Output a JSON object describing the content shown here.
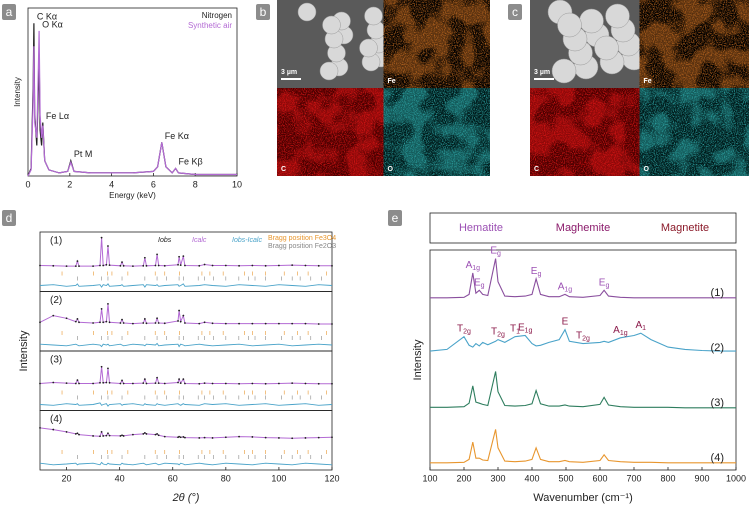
{
  "chart_data": [
    {
      "type": "line",
      "label": "a",
      "xlabel": "Energy (keV)",
      "ylabel": "Intensity",
      "xlim": [
        0,
        10
      ],
      "xticks": [
        0,
        2,
        4,
        6,
        8,
        10
      ],
      "ylim": [
        0,
        110
      ],
      "x": [
        0,
        0.15,
        0.25,
        0.28,
        0.32,
        0.42,
        0.5,
        0.53,
        0.58,
        0.65,
        0.71,
        0.8,
        1.0,
        1.5,
        1.9,
        2.05,
        2.2,
        3,
        4,
        5,
        6,
        6.2,
        6.4,
        6.6,
        6.9,
        7.06,
        7.2,
        8,
        9,
        10
      ],
      "series": [
        {
          "name": "Nitrogen",
          "color": "#222222",
          "values": [
            0,
            5,
            60,
            100,
            40,
            20,
            60,
            80,
            30,
            20,
            35,
            10,
            4,
            2,
            3,
            10,
            3,
            2,
            2,
            2,
            3,
            6,
            22,
            6,
            2,
            5,
            2,
            1,
            1,
            1
          ]
        },
        {
          "name": "Synthetic air",
          "color": "#b36ad4",
          "values": [
            0,
            4,
            50,
            85,
            35,
            25,
            75,
            95,
            40,
            25,
            33,
            10,
            4,
            2,
            3,
            9,
            3,
            2,
            2,
            2,
            3,
            6,
            22,
            6,
            2,
            5,
            2,
            1,
            1,
            1
          ]
        }
      ],
      "annotations": [
        {
          "text": "C Kα",
          "x": 0.28
        },
        {
          "text": "O Kα",
          "x": 0.53
        },
        {
          "text": "Fe Lα",
          "x": 0.71
        },
        {
          "text": "Pt M",
          "x": 2.05
        },
        {
          "text": "Fe Kα",
          "x": 6.4
        },
        {
          "text": "Fe Kβ",
          "x": 7.06
        }
      ]
    },
    {
      "type": "xrd",
      "label": "d",
      "xlabel": "2θ (°)",
      "ylabel": "Intensity",
      "xlim": [
        10,
        120
      ],
      "xticks": [
        20,
        40,
        60,
        80,
        100,
        120
      ],
      "ylim": [
        0,
        100
      ],
      "diff_ylim": [
        -5,
        5
      ],
      "legend": [
        {
          "name": "Iobs",
          "color": "#222222"
        },
        {
          "name": "Icalc",
          "color": "#b36ad4"
        },
        {
          "name": "Iobs-Icalc",
          "color": "#4aa3c9"
        },
        {
          "name": "Bragg position Fe3O4",
          "color": "#e8962e"
        },
        {
          "name": "Bragg position Fe2O3",
          "color": "#888888"
        }
      ],
      "bragg_fe3o4": [
        18.3,
        30.1,
        35.4,
        37.1,
        43.1,
        53.4,
        57.0,
        62.6,
        71,
        74,
        79,
        87,
        90,
        95,
        102,
        107,
        111,
        118
      ],
      "bragg_fe2o3": [
        24.1,
        33.2,
        35.6,
        40.9,
        49.5,
        54.1,
        57.6,
        62.4,
        64.0,
        69.6,
        72,
        75.4,
        80,
        84.9,
        88.5,
        91,
        95,
        101,
        105,
        108,
        112,
        116
      ],
      "x": [
        10,
        15,
        20,
        23.5,
        24.1,
        24.7,
        30,
        32.6,
        33.2,
        33.8,
        35,
        35.6,
        36.2,
        40.3,
        40.9,
        41.5,
        45,
        48.9,
        49.5,
        50.1,
        53.5,
        54.1,
        54.7,
        57,
        62,
        62.4,
        63,
        64,
        64.6,
        70,
        72,
        75,
        80,
        85,
        90,
        95,
        100,
        105,
        110,
        115,
        120
      ],
      "panels": [
        {
          "name": "(1)",
          "values": [
            12,
            11,
            10,
            10,
            25,
            10,
            10,
            12,
            95,
            12,
            14,
            70,
            13,
            11,
            22,
            11,
            10,
            11,
            35,
            11,
            12,
            45,
            12,
            11,
            14,
            38,
            13,
            40,
            12,
            11,
            15,
            12,
            12,
            11,
            12,
            11,
            12,
            13,
            12,
            11,
            11
          ],
          "diff": [
            0,
            1,
            -1,
            0,
            2,
            -1,
            0,
            1,
            -2,
            1,
            0,
            2,
            -1,
            0,
            1,
            -1,
            0,
            1,
            -2,
            1,
            0,
            1,
            -1,
            0,
            1,
            -1,
            0,
            2,
            -1,
            0,
            1,
            0,
            -1,
            1,
            0,
            -1,
            1,
            0,
            -1,
            1,
            0
          ]
        },
        {
          "name": "(2)",
          "values": [
            20,
            40,
            32,
            22,
            30,
            20,
            18,
            20,
            60,
            20,
            22,
            75,
            20,
            18,
            28,
            18,
            16,
            18,
            30,
            17,
            18,
            32,
            18,
            17,
            24,
            55,
            22,
            40,
            18,
            16,
            20,
            17,
            16,
            16,
            16,
            16,
            16,
            16,
            16,
            15,
            15
          ],
          "diff": [
            1,
            0,
            -1,
            1,
            0,
            -1,
            1,
            0,
            -2,
            1,
            0,
            1,
            -1,
            1,
            0,
            -1,
            1,
            0,
            -1,
            1,
            0,
            2,
            -1,
            0,
            1,
            -2,
            1,
            0,
            -1,
            1,
            0,
            -1,
            0,
            1,
            -1,
            0,
            1,
            -1,
            0,
            1,
            0
          ]
        },
        {
          "name": "(3)",
          "values": [
            15,
            18,
            16,
            15,
            25,
            15,
            15,
            17,
            65,
            17,
            18,
            60,
            17,
            15,
            24,
            15,
            15,
            16,
            28,
            15,
            16,
            32,
            16,
            15,
            18,
            28,
            16,
            28,
            15,
            14,
            16,
            15,
            15,
            14,
            15,
            14,
            15,
            16,
            15,
            14,
            14
          ],
          "diff": [
            0,
            -1,
            1,
            0,
            1,
            -1,
            0,
            2,
            -1,
            0,
            1,
            -2,
            0,
            1,
            -1,
            0,
            1,
            -1,
            1,
            0,
            -1,
            1,
            0,
            -1,
            1,
            0,
            -1,
            1,
            0,
            -1,
            1,
            0,
            1,
            -1,
            0,
            1,
            -1,
            0,
            1,
            -1,
            0
          ]
        },
        {
          "name": "(4)",
          "values": [
            60,
            55,
            48,
            42,
            44,
            40,
            36,
            35,
            48,
            36,
            37,
            44,
            37,
            36,
            38,
            36,
            40,
            42,
            45,
            42,
            40,
            42,
            38,
            34,
            32,
            34,
            32,
            33,
            31,
            30,
            31,
            30,
            32,
            34,
            33,
            31,
            30,
            29,
            30,
            31,
            32
          ],
          "diff": [
            1,
            -1,
            0,
            1,
            -1,
            0,
            1,
            -1,
            2,
            0,
            -1,
            1,
            0,
            -1,
            1,
            0,
            -1,
            1,
            0,
            -1,
            1,
            0,
            -1,
            1,
            0,
            -1,
            1,
            0,
            -1,
            1,
            0,
            -1,
            1,
            0,
            -1,
            1,
            0,
            -1,
            1,
            0,
            -1
          ]
        }
      ]
    },
    {
      "type": "raman",
      "label": "e",
      "xlabel": "Wavenumber (cm⁻¹)",
      "ylabel": "Intensity",
      "xlim": [
        100,
        1000
      ],
      "xticks": [
        100,
        200,
        300,
        400,
        500,
        600,
        700,
        800,
        900,
        1000
      ],
      "ylim": [
        0,
        100
      ],
      "header": [
        {
          "text": "Hematite",
          "color": "#9b4fb3"
        },
        {
          "text": "Maghemite",
          "color": "#8b1a6b"
        },
        {
          "text": "Magnetite",
          "color": "#8b1a2a"
        }
      ],
      "x": [
        100,
        150,
        200,
        215,
        226,
        235,
        245,
        255,
        270,
        293,
        300,
        320,
        350,
        380,
        400,
        412,
        425,
        450,
        480,
        497,
        510,
        550,
        600,
        612,
        625,
        660,
        700,
        720,
        750,
        800,
        850,
        900,
        950,
        1000
      ],
      "series": [
        {
          "name": "(1)",
          "color": "#8a4f9e",
          "values": [
            2,
            2,
            3,
            8,
            45,
            10,
            15,
            8,
            6,
            70,
            30,
            5,
            4,
            5,
            8,
            35,
            8,
            4,
            4,
            8,
            4,
            3,
            6,
            15,
            5,
            3,
            2,
            2,
            2,
            2,
            2,
            2,
            2,
            2
          ],
          "annotation_color": "#9b4fb3",
          "annotations": [
            {
              "main": "A",
              "sub": "1g",
              "x": 226
            },
            {
              "main": "E",
              "sub": "g",
              "x": 245
            },
            {
              "main": "E",
              "sub": "g",
              "x": 293
            },
            {
              "main": "E",
              "sub": "g",
              "x": 412
            },
            {
              "main": "A",
              "sub": "1g",
              "x": 497
            },
            {
              "main": "E",
              "sub": "g",
              "x": 612
            }
          ]
        },
        {
          "name": "(2)",
          "color": "#4aa3c9",
          "values": [
            5,
            8,
            30,
            15,
            12,
            18,
            14,
            20,
            16,
            22,
            25,
            20,
            30,
            32,
            18,
            14,
            15,
            20,
            25,
            42,
            22,
            18,
            20,
            22,
            20,
            28,
            32,
            36,
            25,
            12,
            8,
            6,
            5,
            5
          ],
          "annotation_color": "#8b1a4a",
          "annotations": [
            {
              "main": "T",
              "sub": "2g",
              "x": 200
            },
            {
              "main": "T",
              "sub": "2g",
              "x": 300
            },
            {
              "main": "T",
              "sub": "1",
              "x": 350
            },
            {
              "main": "E",
              "sub": "1g",
              "x": 380
            },
            {
              "main": "E",
              "sub": "",
              "x": 497
            },
            {
              "main": "T",
              "sub": "2g",
              "x": 550
            },
            {
              "main": "A",
              "sub": "1g",
              "x": 660
            },
            {
              "main": "A",
              "sub": "1",
              "x": 720
            }
          ]
        },
        {
          "name": "(3)",
          "color": "#2e7d5e",
          "values": [
            3,
            3,
            4,
            10,
            40,
            12,
            10,
            8,
            6,
            65,
            30,
            6,
            5,
            6,
            9,
            32,
            9,
            5,
            5,
            7,
            5,
            4,
            8,
            20,
            7,
            4,
            3,
            3,
            3,
            3,
            2,
            2,
            2,
            2
          ]
        },
        {
          "name": "(4)",
          "color": "#e8962e",
          "values": [
            2,
            2,
            3,
            8,
            38,
            10,
            10,
            7,
            6,
            60,
            28,
            5,
            4,
            5,
            8,
            28,
            8,
            4,
            4,
            6,
            4,
            3,
            6,
            16,
            6,
            4,
            3,
            3,
            3,
            2,
            2,
            2,
            2,
            2
          ]
        }
      ]
    }
  ],
  "images": [
    {
      "label": "b",
      "scale_bar": "3 µm",
      "channels": [
        "Fe",
        "C",
        "O"
      ]
    },
    {
      "label": "c",
      "scale_bar": "3 µm",
      "channels": [
        "Fe",
        "C",
        "O"
      ]
    }
  ]
}
